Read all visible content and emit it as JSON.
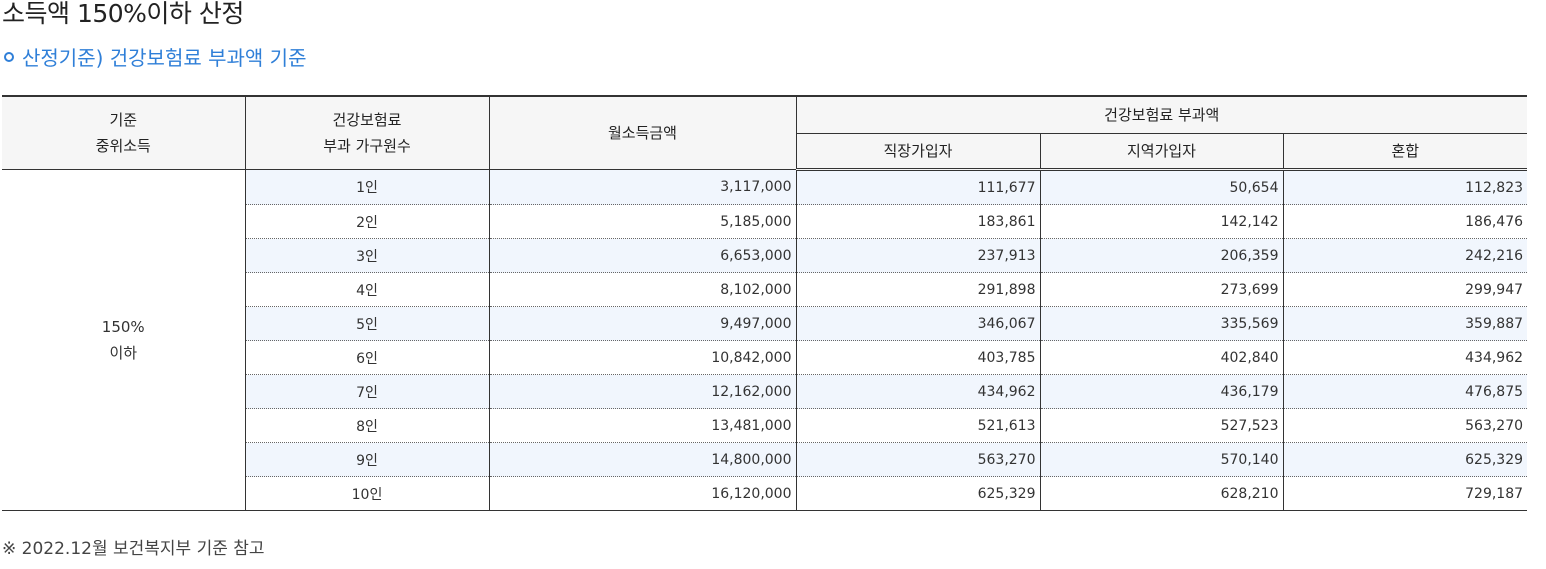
{
  "page": {
    "title": "소득액 150%이하 산정",
    "subtitle": "산정기준) 건강보험료 부과액 기준"
  },
  "table": {
    "headers": {
      "tier_line1": "기준",
      "tier_line2": "중위소득",
      "members_line1": "건강보험료",
      "members_line2": "부과 가구원수",
      "income": "월소득금액",
      "premium_group": "건강보험료 부과액",
      "employee": "직장가입자",
      "regional": "지역가입자",
      "mixed": "혼합"
    },
    "tier_line1": "150%",
    "tier_line2": "이하",
    "rows": [
      {
        "members": "1인",
        "income": "3,117,000",
        "employee": "111,677",
        "regional": "50,654",
        "mixed": "112,823"
      },
      {
        "members": "2인",
        "income": "5,185,000",
        "employee": "183,861",
        "regional": "142,142",
        "mixed": "186,476"
      },
      {
        "members": "3인",
        "income": "6,653,000",
        "employee": "237,913",
        "regional": "206,359",
        "mixed": "242,216"
      },
      {
        "members": "4인",
        "income": "8,102,000",
        "employee": "291,898",
        "regional": "273,699",
        "mixed": "299,947"
      },
      {
        "members": "5인",
        "income": "9,497,000",
        "employee": "346,067",
        "regional": "335,569",
        "mixed": "359,887"
      },
      {
        "members": "6인",
        "income": "10,842,000",
        "employee": "403,785",
        "regional": "402,840",
        "mixed": "434,962"
      },
      {
        "members": "7인",
        "income": "12,162,000",
        "employee": "434,962",
        "regional": "436,179",
        "mixed": "476,875"
      },
      {
        "members": "8인",
        "income": "13,481,000",
        "employee": "521,613",
        "regional": "527,523",
        "mixed": "563,270"
      },
      {
        "members": "9인",
        "income": "14,800,000",
        "employee": "563,270",
        "regional": "570,140",
        "mixed": "625,329"
      },
      {
        "members": "10인",
        "income": "16,120,000",
        "employee": "625,329",
        "regional": "628,210",
        "mixed": "729,187"
      }
    ]
  },
  "footnote": "※ 2022.12월 보건복지부 기준 참고",
  "colors": {
    "accent": "#2f7fd8",
    "row_shade": "#f1f6fd",
    "header_bg": "#f6f6f6"
  }
}
